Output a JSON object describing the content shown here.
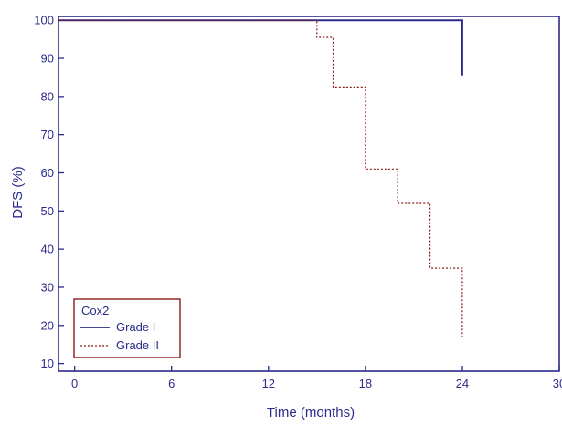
{
  "chart_data": {
    "type": "line",
    "subtype": "step",
    "xlabel": "Time  (months)",
    "ylabel": "DFS (%)",
    "xlim": [
      -1,
      30
    ],
    "ylim": [
      8,
      101
    ],
    "xticks": [
      0,
      6,
      12,
      18,
      24,
      30
    ],
    "yticks": [
      10,
      20,
      30,
      40,
      50,
      60,
      70,
      80,
      90,
      100
    ],
    "legend": {
      "title": "Cox2",
      "position": "bottom-left"
    },
    "series": [
      {
        "name": "Grade I",
        "color": "#2b2b8c",
        "style": "solid",
        "points": [
          [
            -1,
            100
          ],
          [
            24,
            100
          ],
          [
            24,
            85.5
          ]
        ]
      },
      {
        "name": "Grade II",
        "color": "#8b1a1a",
        "style": "dotted",
        "points": [
          [
            -1,
            100
          ],
          [
            15,
            100
          ],
          [
            15,
            95.5
          ],
          [
            16,
            95.5
          ],
          [
            16,
            82.5
          ],
          [
            18,
            82.5
          ],
          [
            18,
            61
          ],
          [
            20,
            61
          ],
          [
            20,
            52
          ],
          [
            22,
            52
          ],
          [
            22,
            35
          ],
          [
            24,
            35
          ],
          [
            24,
            17
          ]
        ]
      }
    ]
  }
}
